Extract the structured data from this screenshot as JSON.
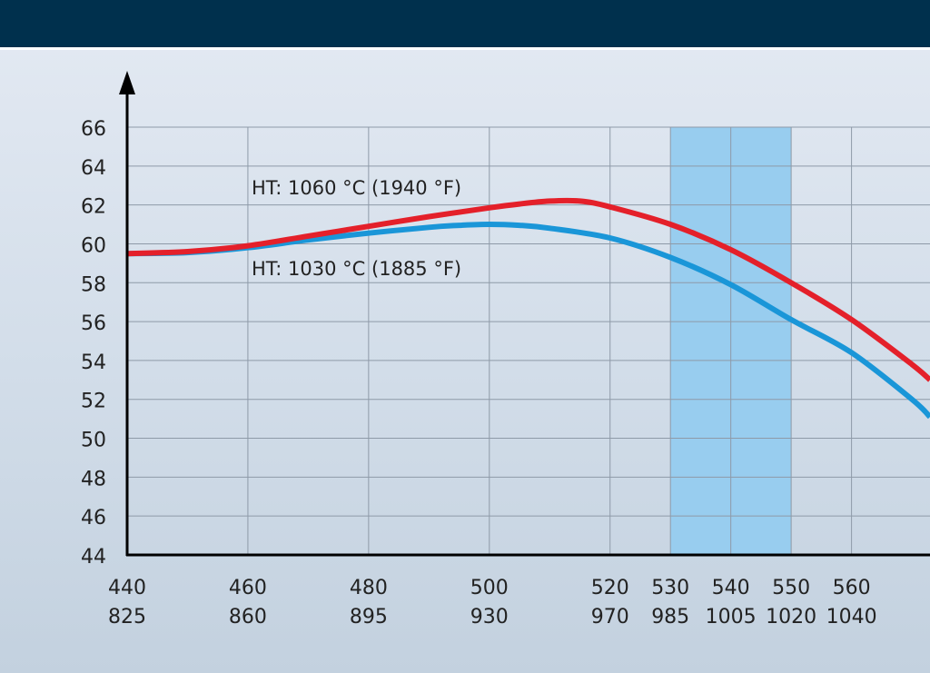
{
  "chart_data": {
    "type": "line",
    "title": "",
    "xlabel": "",
    "ylabel": "",
    "x_ticks": [
      {
        "value": 440,
        "label": "440",
        "label2": "825"
      },
      {
        "value": 460,
        "label": "460",
        "label2": "860"
      },
      {
        "value": 480,
        "label": "480",
        "label2": "895"
      },
      {
        "value": 500,
        "label": "500",
        "label2": "930"
      },
      {
        "value": 520,
        "label": "520",
        "label2": "970"
      },
      {
        "value": 530,
        "label": "530",
        "label2": "985"
      },
      {
        "value": 540,
        "label": "540",
        "label2": "1005"
      },
      {
        "value": 550,
        "label": "550",
        "label2": "1020"
      },
      {
        "value": 560,
        "label": "560",
        "label2": "1040"
      }
    ],
    "xlim": [
      440,
      573
    ],
    "ylim": [
      44,
      66
    ],
    "y_ticks": [
      44,
      46,
      48,
      50,
      52,
      54,
      56,
      58,
      60,
      62,
      64,
      66
    ],
    "grid": true,
    "highlight_band": {
      "x_from": 530,
      "x_to": 550,
      "color": "#98cdef"
    },
    "series": [
      {
        "name": "HT: 1060 °C (1940 °F)",
        "color": "#e4202a",
        "points": [
          [
            440,
            59.5
          ],
          [
            450,
            59.6
          ],
          [
            460,
            59.9
          ],
          [
            470,
            60.4
          ],
          [
            480,
            60.9
          ],
          [
            490,
            61.4
          ],
          [
            500,
            61.85
          ],
          [
            505,
            62.05
          ],
          [
            510,
            62.2
          ],
          [
            515,
            62.2
          ],
          [
            520,
            61.9
          ],
          [
            530,
            61.0
          ],
          [
            540,
            59.7
          ],
          [
            550,
            58.0
          ],
          [
            560,
            56.1
          ],
          [
            570,
            53.8
          ],
          [
            573,
            53.0
          ]
        ]
      },
      {
        "name": "HT: 1030 °C (1885 °F)",
        "color": "#1a96d8",
        "points": [
          [
            440,
            59.5
          ],
          [
            450,
            59.55
          ],
          [
            460,
            59.8
          ],
          [
            470,
            60.2
          ],
          [
            480,
            60.55
          ],
          [
            490,
            60.85
          ],
          [
            495,
            60.95
          ],
          [
            500,
            61.0
          ],
          [
            505,
            60.95
          ],
          [
            510,
            60.8
          ],
          [
            520,
            60.3
          ],
          [
            530,
            59.3
          ],
          [
            540,
            57.9
          ],
          [
            550,
            56.1
          ],
          [
            560,
            54.4
          ],
          [
            570,
            52.0
          ],
          [
            573,
            51.1
          ]
        ]
      }
    ]
  }
}
